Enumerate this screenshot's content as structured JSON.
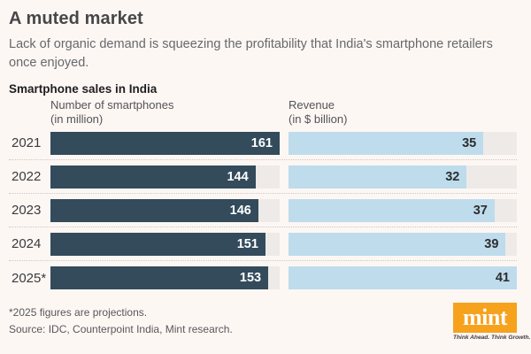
{
  "title": "A muted market",
  "subtitle": "Lack of organic demand is squeezing the profitability that India's smartphone retailers once enjoyed.",
  "section_title": "Smartphone sales in India",
  "chart_data": {
    "type": "bar",
    "orientation": "horizontal",
    "categories": [
      "2021",
      "2022",
      "2023",
      "2024",
      "2025*"
    ],
    "series": [
      {
        "name": "Number of smartphones",
        "unit_label": "(in million)",
        "values": [
          161,
          144,
          146,
          151,
          153
        ],
        "axis_max": 161,
        "bar_color": "#334B5B",
        "value_label_color": "#FFFFFF"
      },
      {
        "name": "Revenue",
        "unit_label": "(in $ billion)",
        "values": [
          35,
          32,
          37,
          39,
          41
        ],
        "axis_max": 41,
        "bar_color": "#BEDCEC",
        "value_label_color": "#2D2D2F"
      }
    ],
    "track_color": "#EDEAE7",
    "grid": "off",
    "legend": "column-headers-above-each-series"
  },
  "footnote": "*2025 figures are projections.",
  "source": "Source: IDC, Counterpoint India, Mint research.",
  "brand": {
    "logo_text": "mint",
    "tagline": "Think Ahead. Think Growth.",
    "logo_bg_color": "#F7A21D",
    "logo_text_color": "#FFFFFF"
  },
  "background_color": "#FDF7F4"
}
